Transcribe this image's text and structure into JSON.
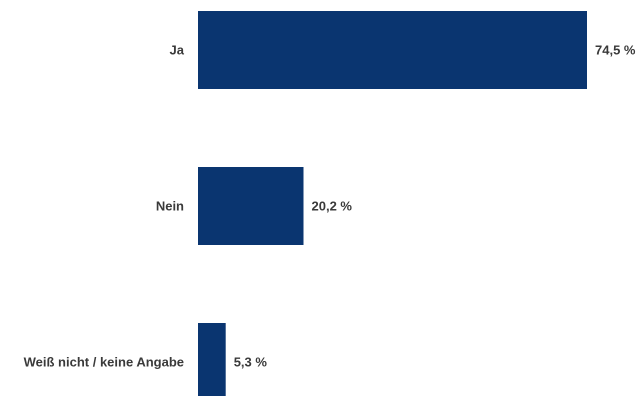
{
  "chart_data": {
    "type": "bar",
    "orientation": "horizontal",
    "categories": [
      "Ja",
      "Nein",
      "Weiß nicht / keine Angabe"
    ],
    "values": [
      74.5,
      20.2,
      5.3
    ],
    "value_labels": [
      "74,5 %",
      "20,2 %",
      "5,3 %"
    ],
    "unit": "%",
    "xlim": [
      0,
      74.5
    ],
    "bar_color": "#0a3570",
    "grid": false,
    "legend": "none"
  }
}
